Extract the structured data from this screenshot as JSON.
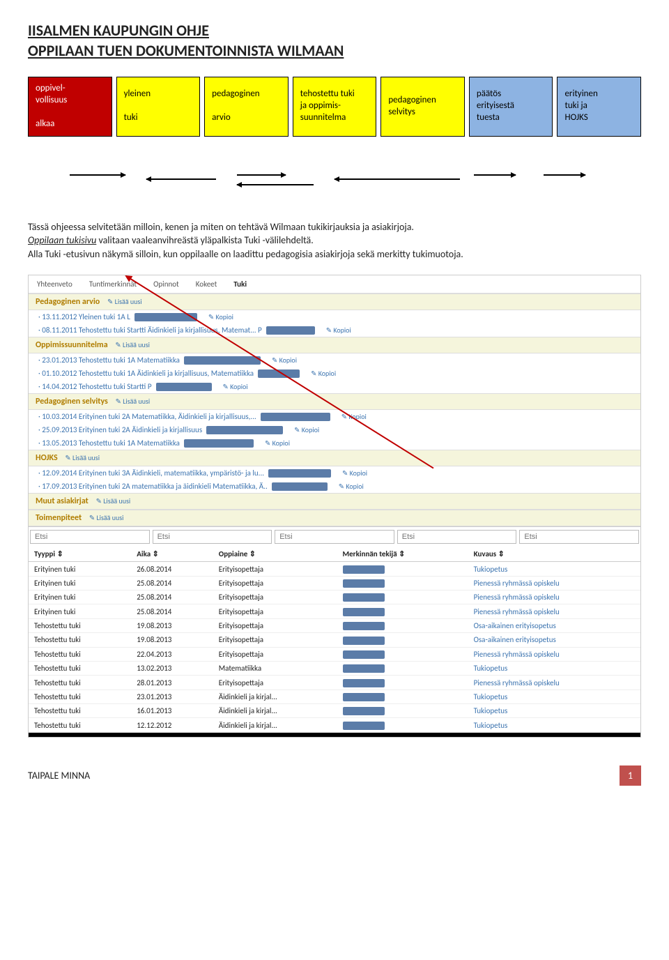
{
  "title1": "IISALMEN KAUPUNGIN OHJE",
  "title2": "OPPILAAN TUEN DOKUMENTOINNISTA WILMAAN",
  "flow": [
    {
      "text": "oppivel-\nvollisuus\n\nalkaa",
      "color": "#c00000",
      "fg": "#ffffff"
    },
    {
      "text": "yleinen\n\ntuki",
      "color": "#ffff00",
      "fg": "#000000"
    },
    {
      "text": "pedagoginen\n\narvio",
      "color": "#ffff00",
      "fg": "#000000"
    },
    {
      "text": "tehostettu tuki\nja oppimis-\nsuunnitelma",
      "color": "#ffff00",
      "fg": "#000000"
    },
    {
      "text": "pedagoginen\nselvitys",
      "color": "#ffff00",
      "fg": "#000000"
    },
    {
      "text": "päätös\nerityisestä\ntuesta",
      "color": "#8db3e2",
      "fg": "#000000"
    },
    {
      "text": "erityinen\ntuki ja\nHOJKS",
      "color": "#8db3e2",
      "fg": "#000000"
    }
  ],
  "para_plain1": "Tässä ohjeessa selvitetään milloin, kenen ja miten on tehtävä Wilmaan tukikirjauksia ja asiakirjoja.",
  "para_u": "Oppilaan tukisivu",
  "para_plain2": " valitaan vaaleanvihreästä yläpalkista Tuki -välilehdeltä.",
  "para_plain3": "Alla Tuki -etusivun näkymä silloin, kun oppilaalle on laadittu pedagogisia asiakirjoja sekä merkitty tukimuotoja.",
  "tabs": [
    "Yhteenveto",
    "Tuntimerkinnät",
    "Opinnot",
    "Kokeet",
    "Tuki"
  ],
  "active_tab": "Tuki",
  "add_label": "✎ Lisää uusi",
  "kopioi": "✎ Kopioi",
  "sections": [
    {
      "title": "Pedagoginen arvio",
      "items": [
        {
          "text": "· 13.11.2012 Yleinen tuki 1A L",
          "redact": 90
        },
        {
          "text": "· 08.11.2011 Tehostettu tuki Startti Äidinkieli ja kirjallisuus, Matemat... P",
          "redact": 70
        }
      ]
    },
    {
      "title": "Oppimissuunnitelma",
      "items": [
        {
          "text": "· 23.01.2013 Tehostettu tuki 1A Matematiikka",
          "redact": 110
        },
        {
          "text": "· 01.10.2012 Tehostettu tuki 1A Äidinkieli ja kirjallisuus, Matematiikka ",
          "redact": 60
        },
        {
          "text": "· 14.04.2012 Tehostettu tuki Startti P",
          "redact": 80
        }
      ]
    },
    {
      "title": "Pedagoginen selvitys",
      "items": [
        {
          "text": "· 10.03.2014 Erityinen tuki 2A Matematiikka, Äidinkieli ja kirjallisuus,...",
          "redact": 100
        },
        {
          "text": "· 25.09.2013 Erityinen tuki 2A Äidinkieli ja kirjallisuus",
          "redact": 110
        },
        {
          "text": "· 13.05.2013 Tehostettu tuki 1A Matematiikka",
          "redact": 100
        }
      ]
    },
    {
      "title": "HOJKS",
      "items": [
        {
          "text": "· 12.09.2014 Erityinen tuki 3A Äidinkieli, matematiikka, ympäristö- ja lu...",
          "redact": 90
        },
        {
          "text": "· 17.09.2013 Erityinen tuki 2A matematiikka ja äidinkieli Matematiikka, Ä..",
          "redact": 80
        }
      ]
    },
    {
      "title": "Muut asiakirjat",
      "items": []
    }
  ],
  "toimenpiteet": "Toimenpiteet",
  "etsi": "Etsi",
  "columns": [
    "Tyyppi ⇕",
    "Aika ⇕",
    "Oppiaine ⇕",
    "Merkinnän tekijä ⇕",
    "Kuvaus ⇕"
  ],
  "rows": [
    [
      "Erityinen tuki",
      "26.08.2014",
      "Erityisopettaja",
      "",
      "Tukiopetus"
    ],
    [
      "Erityinen tuki",
      "25.08.2014",
      "Erityisopettaja",
      "",
      "Pienessä ryhmässä opiskelu"
    ],
    [
      "Erityinen tuki",
      "25.08.2014",
      "Erityisopettaja",
      "",
      "Pienessä ryhmässä opiskelu"
    ],
    [
      "Erityinen tuki",
      "25.08.2014",
      "Erityisopettaja",
      "",
      "Pienessä ryhmässä opiskelu"
    ],
    [
      "Tehostettu tuki",
      "19.08.2013",
      "Erityisopettaja",
      "",
      "Osa-aikainen erityisopetus"
    ],
    [
      "Tehostettu tuki",
      "19.08.2013",
      "Erityisopettaja",
      "",
      "Osa-aikainen erityisopetus"
    ],
    [
      "Tehostettu tuki",
      "22.04.2013",
      "Erityisopettaja",
      "",
      "Pienessä ryhmässä opiskelu"
    ],
    [
      "Tehostettu tuki",
      "13.02.2013",
      "Matematiikka",
      "",
      "Tukiopetus"
    ],
    [
      "Tehostettu tuki",
      "28.01.2013",
      "Erityisopettaja",
      "",
      "Pienessä ryhmässä opiskelu"
    ],
    [
      "Tehostettu tuki",
      "23.01.2013",
      "Äidinkieli ja kirjal...",
      "",
      "Tukiopetus"
    ],
    [
      "Tehostettu tuki",
      "16.01.2013",
      "Äidinkieli ja kirjal...",
      "",
      "Tukiopetus"
    ],
    [
      "Tehostettu tuki",
      "12.12.2012",
      "Äidinkieli ja kirjal...",
      "",
      "Tukiopetus"
    ]
  ],
  "footer_author": "TAIPALE MINNA",
  "footer_page": "1"
}
